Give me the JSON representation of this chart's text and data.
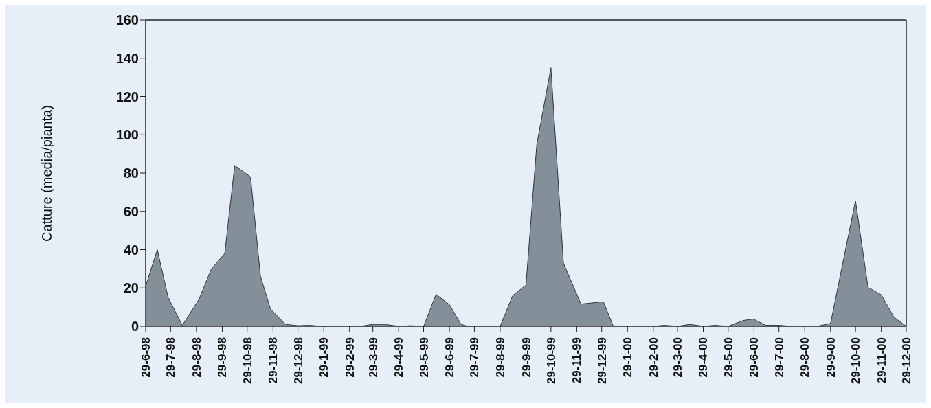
{
  "chart_data": {
    "type": "area",
    "ylabel": "Catture (media/pianta)",
    "color": "#838f99",
    "x": [
      "1998-06-29",
      "1998-07-13",
      "1998-07-26",
      "1998-08-12",
      "1998-09-01",
      "1998-09-16",
      "1998-10-02",
      "1998-10-14",
      "1998-11-02",
      "1998-11-14",
      "1998-11-26",
      "1998-12-14",
      "1998-12-29",
      "1999-01-12",
      "1999-01-26",
      "1999-02-12",
      "1999-02-27",
      "1999-03-14",
      "1999-03-29",
      "1999-04-12",
      "1999-04-29",
      "1999-05-13",
      "1999-05-29",
      "1999-06-13",
      "1999-06-29",
      "1999-07-13",
      "1999-07-21",
      "1999-07-29",
      "1999-08-13",
      "1999-08-29",
      "1999-09-13",
      "1999-09-29",
      "1999-10-12",
      "1999-10-29",
      "1999-11-13",
      "1999-12-04",
      "1999-12-31",
      "2000-01-12",
      "2000-01-29",
      "2000-02-13",
      "2000-02-29",
      "2000-03-13",
      "2000-03-29",
      "2000-04-13",
      "2000-04-29",
      "2000-05-13",
      "2000-05-29",
      "2000-06-16",
      "2000-06-28",
      "2000-07-13",
      "2000-07-29",
      "2000-08-13",
      "2000-08-29",
      "2000-09-13",
      "2000-09-29",
      "2000-10-29",
      "2000-11-13",
      "2000-11-29",
      "2000-12-14",
      "2000-12-29"
    ],
    "values": [
      21,
      40,
      15,
      0.5,
      14,
      30,
      38,
      84,
      78,
      26,
      9,
      1,
      0.3,
      0.5,
      0,
      0,
      0,
      0,
      1,
      1,
      0,
      0.3,
      0,
      16.7,
      11.3,
      1,
      0,
      0,
      0,
      0,
      16,
      21.5,
      95,
      135,
      33,
      11.6,
      12.8,
      0,
      0,
      0,
      0,
      0.5,
      0,
      1,
      0,
      0.5,
      0,
      3,
      3.8,
      0.5,
      0.5,
      0,
      0,
      0,
      1.5,
      65.6,
      20.3,
      16.4,
      4.8,
      0
    ],
    "xlim": [
      "1998-06-29",
      "2000-12-29"
    ],
    "xticks": [
      {
        "value": "1998-06-29",
        "label": "29-6-98"
      },
      {
        "value": "1998-07-29",
        "label": "29-7-98"
      },
      {
        "value": "1998-08-29",
        "label": "29-8-98"
      },
      {
        "value": "1998-09-29",
        "label": "29-9-98"
      },
      {
        "value": "1998-10-29",
        "label": "29-10-98"
      },
      {
        "value": "1998-11-29",
        "label": "29-11-98"
      },
      {
        "value": "1998-12-29",
        "label": "29-12-98"
      },
      {
        "value": "1999-01-29",
        "label": "29-1-99"
      },
      {
        "value": "1999-03-01",
        "label": "29-2-99"
      },
      {
        "value": "1999-03-29",
        "label": "29-3-99"
      },
      {
        "value": "1999-04-29",
        "label": "29-4-99"
      },
      {
        "value": "1999-05-29",
        "label": "29-5-99"
      },
      {
        "value": "1999-06-29",
        "label": "29-6-99"
      },
      {
        "value": "1999-07-29",
        "label": "29-7-99"
      },
      {
        "value": "1999-08-29",
        "label": "29-8-99"
      },
      {
        "value": "1999-09-29",
        "label": "29-9-99"
      },
      {
        "value": "1999-10-29",
        "label": "29-10-99"
      },
      {
        "value": "1999-11-29",
        "label": "29-11-99"
      },
      {
        "value": "1999-12-29",
        "label": "29-12-99"
      },
      {
        "value": "2000-01-29",
        "label": "29-1-00"
      },
      {
        "value": "2000-02-29",
        "label": "29-2-00"
      },
      {
        "value": "2000-03-29",
        "label": "29-3-00"
      },
      {
        "value": "2000-04-29",
        "label": "29-4-00"
      },
      {
        "value": "2000-05-29",
        "label": "29-5-00"
      },
      {
        "value": "2000-06-29",
        "label": "29-6-00"
      },
      {
        "value": "2000-07-29",
        "label": "29-7-00"
      },
      {
        "value": "2000-08-29",
        "label": "29-8-00"
      },
      {
        "value": "2000-09-29",
        "label": "29-9-00"
      },
      {
        "value": "2000-10-29",
        "label": "29-10-00"
      },
      {
        "value": "2000-11-29",
        "label": "29-11-00"
      },
      {
        "value": "2000-12-29",
        "label": "29-12-00"
      }
    ],
    "ylim": [
      0,
      160
    ],
    "yticks": [
      0,
      20,
      40,
      60,
      80,
      100,
      120,
      140,
      160
    ]
  }
}
